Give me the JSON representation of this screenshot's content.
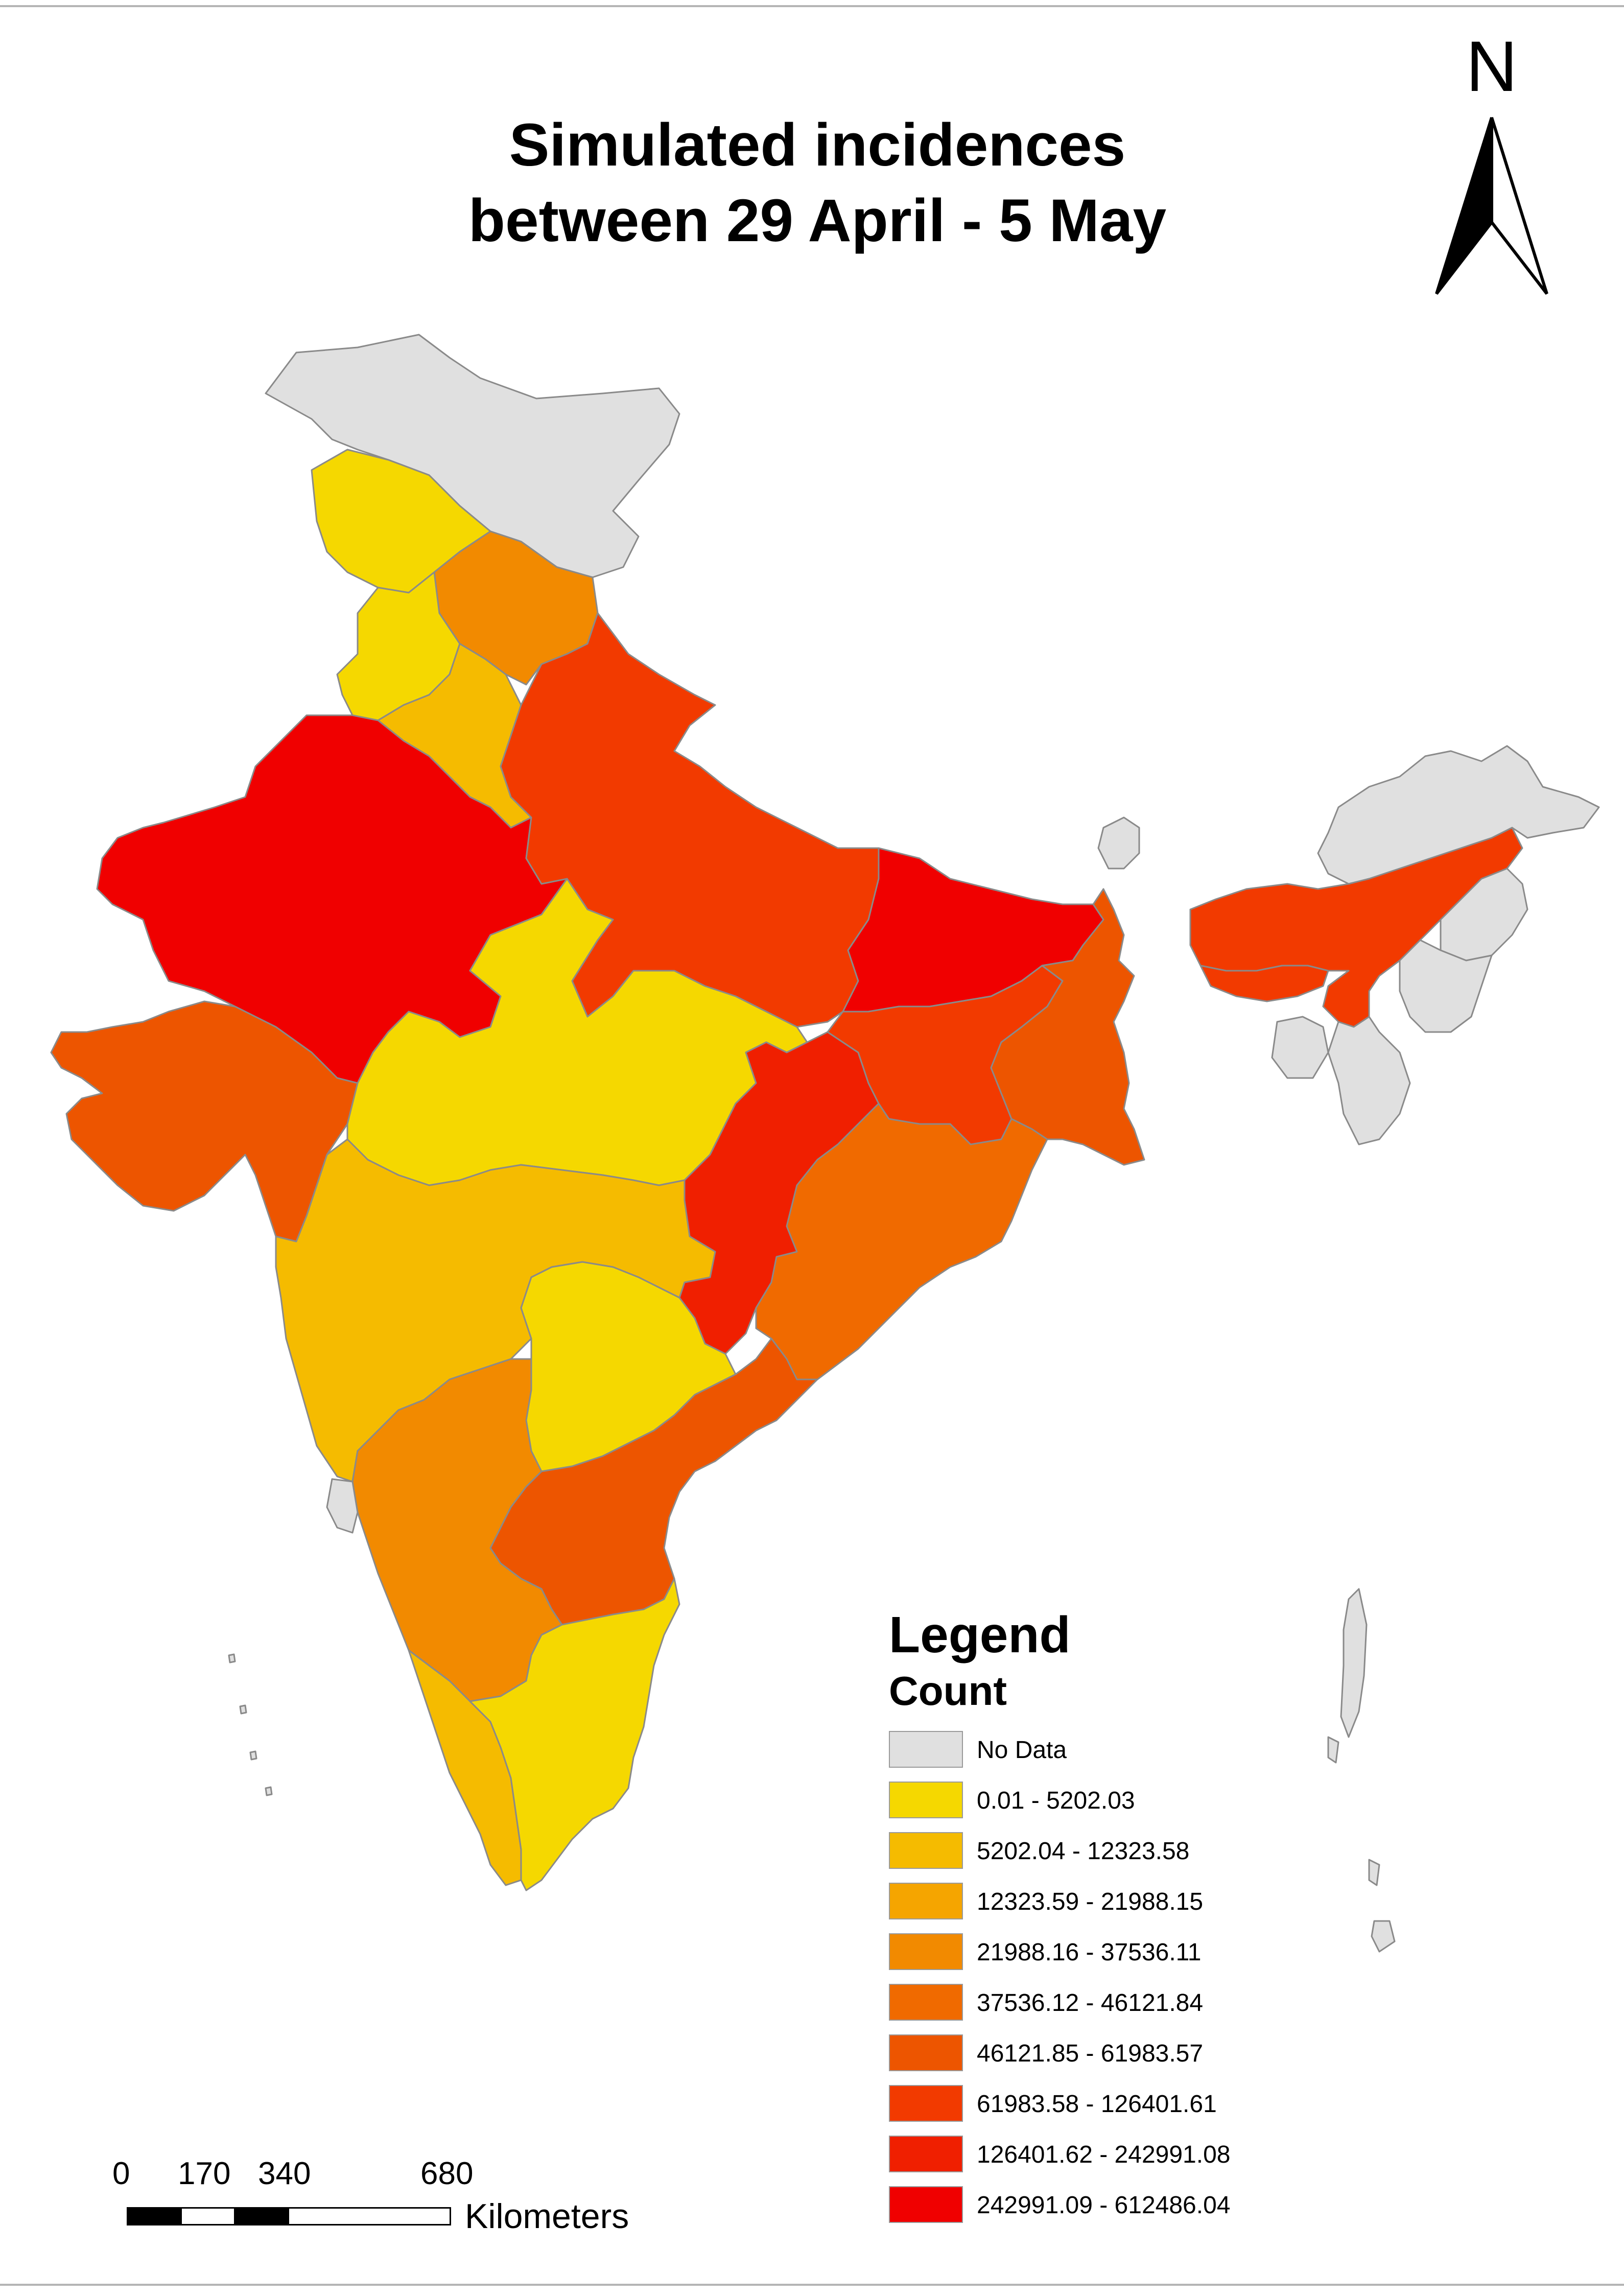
{
  "title_line1": "Simulated incidences",
  "title_line2": "between 29 April - 5 May",
  "north_label": "N",
  "legend": {
    "title": "Legend",
    "subtitle": "Count",
    "items": [
      {
        "label": "No Data",
        "color": "#e0e0e0"
      },
      {
        "label": "0.01 - 5202.03",
        "color": "#f5d800"
      },
      {
        "label": "5202.04 - 12323.58",
        "color": "#f5bb00"
      },
      {
        "label": "12323.59 - 21988.15",
        "color": "#f5a500"
      },
      {
        "label": "21988.16 - 37536.11",
        "color": "#f28a00"
      },
      {
        "label": "37536.12 - 46121.84",
        "color": "#f06a00"
      },
      {
        "label": "46121.85 - 61983.57",
        "color": "#ed5500"
      },
      {
        "label": "61983.58 - 126401.61",
        "color": "#f23a00"
      },
      {
        "label": "126401.62 - 242991.08",
        "color": "#f01f00"
      },
      {
        "label": "242991.09 - 612486.04",
        "color": "#f00000"
      }
    ]
  },
  "scale_bar": {
    "ticks": [
      "0",
      "170",
      "340",
      "680"
    ],
    "unit": "Kilometers"
  },
  "regions": [
    {
      "name": "jammu-kashmir",
      "class": "No Data"
    },
    {
      "name": "himachal-pradesh",
      "class": "0.01 - 5202.03"
    },
    {
      "name": "uttarakhand",
      "class": "21988.16 - 37536.11"
    },
    {
      "name": "punjab",
      "class": "0.01 - 5202.03"
    },
    {
      "name": "haryana",
      "class": "5202.04 - 12323.58"
    },
    {
      "name": "rajasthan",
      "class": "242991.09 - 612486.04"
    },
    {
      "name": "uttar-pradesh",
      "class": "61983.58 - 126401.61"
    },
    {
      "name": "bihar",
      "class": "242991.09 - 612486.04"
    },
    {
      "name": "gujarat",
      "class": "46121.85 - 61983.57"
    },
    {
      "name": "madhya-pradesh",
      "class": "0.01 - 5202.03"
    },
    {
      "name": "chhattisgarh",
      "class": "126401.62 - 242991.08"
    },
    {
      "name": "jharkhand",
      "class": "61983.58 - 126401.61"
    },
    {
      "name": "west-bengal",
      "class": "46121.85 - 61983.57"
    },
    {
      "name": "odisha",
      "class": "37536.12 - 46121.84"
    },
    {
      "name": "maharashtra",
      "class": "5202.04 - 12323.58"
    },
    {
      "name": "telangana",
      "class": "0.01 - 5202.03"
    },
    {
      "name": "andhra-pradesh",
      "class": "46121.85 - 61983.57"
    },
    {
      "name": "karnataka",
      "class": "21988.16 - 37536.11"
    },
    {
      "name": "goa",
      "class": "No Data"
    },
    {
      "name": "kerala",
      "class": "5202.04 - 12323.58"
    },
    {
      "name": "tamil-nadu",
      "class": "0.01 - 5202.03"
    },
    {
      "name": "assam",
      "class": "61983.58 - 126401.61"
    },
    {
      "name": "sikkim",
      "class": "No Data"
    },
    {
      "name": "arunachal-pradesh",
      "class": "No Data"
    },
    {
      "name": "meghalaya",
      "class": "61983.58 - 126401.61"
    },
    {
      "name": "nagaland",
      "class": "No Data"
    },
    {
      "name": "manipur",
      "class": "No Data"
    },
    {
      "name": "mizoram",
      "class": "No Data"
    },
    {
      "name": "tripura",
      "class": "No Data"
    },
    {
      "name": "andaman-nicobar",
      "class": "No Data"
    },
    {
      "name": "lakshadweep",
      "class": "No Data"
    }
  ]
}
